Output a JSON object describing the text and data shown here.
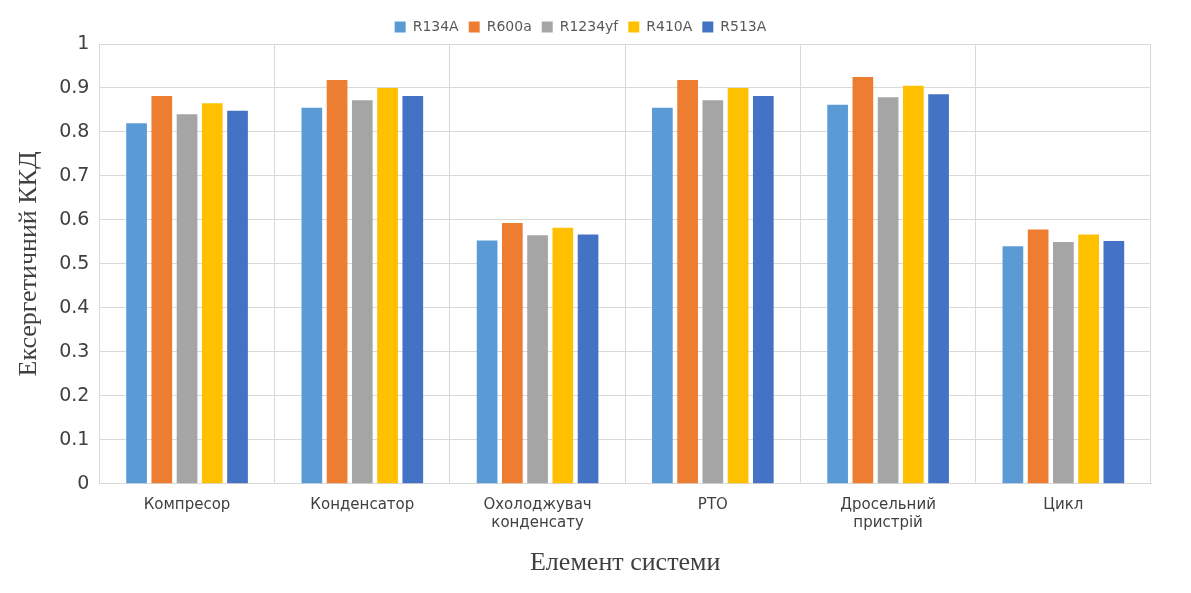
{
  "chart_data": {
    "type": "bar",
    "xlabel": "Елемент системи",
    "ylabel": "Ексергетичний ККД",
    "categories": [
      "Компресор",
      "Конденсатор",
      "Охолоджувач конденсату",
      "РТО",
      "Дросельний пристрій",
      "Цикл"
    ],
    "series": [
      {
        "name": "R134A",
        "color": "#5b9bd5",
        "values": [
          0.82,
          0.855,
          0.553,
          0.855,
          0.862,
          0.54
        ]
      },
      {
        "name": "R600a",
        "color": "#ed7d31",
        "values": [
          0.882,
          0.918,
          0.593,
          0.918,
          0.925,
          0.578
        ]
      },
      {
        "name": "R1234yf",
        "color": "#a5a5a5",
        "values": [
          0.84,
          0.872,
          0.565,
          0.872,
          0.879,
          0.55
        ]
      },
      {
        "name": "R410A",
        "color": "#ffc000",
        "values": [
          0.865,
          0.9,
          0.582,
          0.9,
          0.905,
          0.567
        ]
      },
      {
        "name": "R513A",
        "color": "#4472c4",
        "values": [
          0.848,
          0.882,
          0.567,
          0.882,
          0.886,
          0.552
        ]
      }
    ],
    "ylim": [
      0,
      1
    ],
    "yticks": [
      0,
      0.1,
      0.2,
      0.3,
      0.4,
      0.5,
      0.6,
      0.7,
      0.8,
      0.9,
      1
    ],
    "grid": true,
    "legend": "top"
  }
}
